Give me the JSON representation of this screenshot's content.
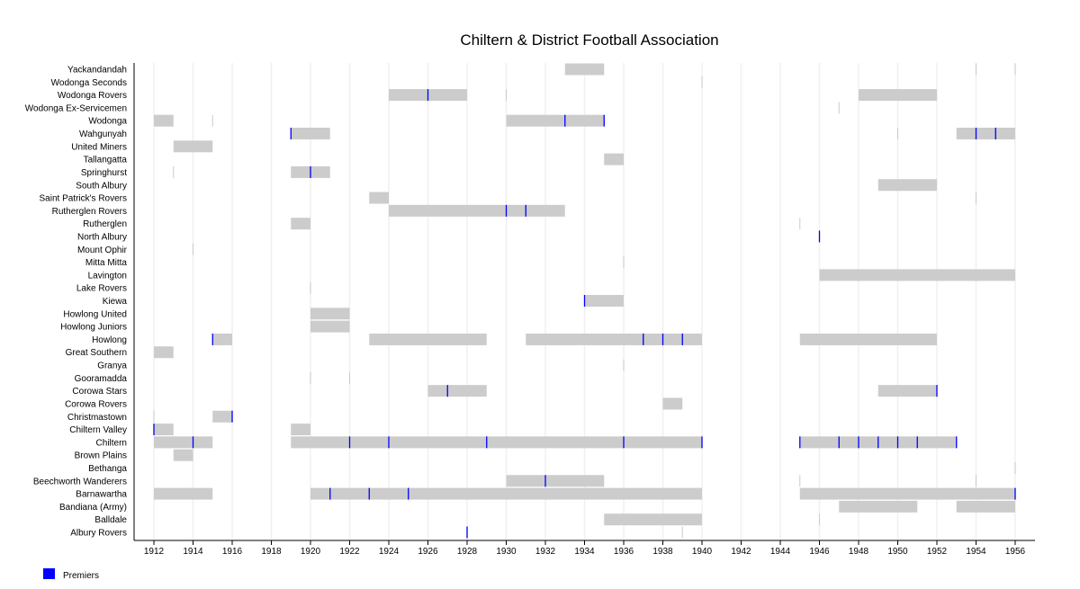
{
  "chart_data": {
    "type": "timeline",
    "title": "Chiltern & District Football Association",
    "xlim": [
      1911,
      1957
    ],
    "x_ticks": [
      1912,
      1914,
      1916,
      1918,
      1920,
      1922,
      1924,
      1926,
      1928,
      1930,
      1932,
      1934,
      1936,
      1938,
      1940,
      1942,
      1944,
      1946,
      1948,
      1950,
      1952,
      1954,
      1956
    ],
    "grid": true,
    "legend": {
      "position": "bottom-left",
      "label": "Premiers",
      "color": "#0000ff"
    },
    "colors": {
      "bar": "#cccccc",
      "premier": "#0000ff"
    },
    "teams": [
      {
        "name": "Yackandandah",
        "spans": [
          [
            1933,
            1935
          ],
          [
            1954,
            1954
          ],
          [
            1956,
            1956
          ]
        ],
        "premiers": []
      },
      {
        "name": "Wodonga Seconds",
        "spans": [
          [
            1940,
            1940
          ]
        ],
        "premiers": []
      },
      {
        "name": "Wodonga Rovers",
        "spans": [
          [
            1924,
            1928
          ],
          [
            1930,
            1930
          ],
          [
            1948,
            1952
          ]
        ],
        "premiers": [
          1926
        ]
      },
      {
        "name": "Wodonga Ex-Servicemen",
        "spans": [
          [
            1947,
            1947
          ]
        ],
        "premiers": []
      },
      {
        "name": "Wodonga",
        "spans": [
          [
            1912,
            1913
          ],
          [
            1915,
            1915
          ],
          [
            1930,
            1935
          ]
        ],
        "premiers": [
          1933,
          1935
        ]
      },
      {
        "name": "Wahgunyah",
        "spans": [
          [
            1919,
            1921
          ],
          [
            1950,
            1950
          ],
          [
            1953,
            1956
          ]
        ],
        "premiers": [
          1919,
          1954,
          1955
        ]
      },
      {
        "name": "United Miners",
        "spans": [
          [
            1913,
            1915
          ]
        ],
        "premiers": []
      },
      {
        "name": "Tallangatta",
        "spans": [
          [
            1935,
            1936
          ]
        ],
        "premiers": []
      },
      {
        "name": "Springhurst",
        "spans": [
          [
            1913,
            1913
          ],
          [
            1919,
            1921
          ]
        ],
        "premiers": [
          1920
        ]
      },
      {
        "name": "South Albury",
        "spans": [
          [
            1949,
            1952
          ]
        ],
        "premiers": []
      },
      {
        "name": "Saint Patrick's Rovers",
        "spans": [
          [
            1923,
            1924
          ],
          [
            1954,
            1954
          ]
        ],
        "premiers": []
      },
      {
        "name": "Rutherglen Rovers",
        "spans": [
          [
            1924,
            1933
          ]
        ],
        "premiers": [
          1930,
          1931
        ]
      },
      {
        "name": "Rutherglen",
        "spans": [
          [
            1919,
            1920
          ],
          [
            1945,
            1945
          ]
        ],
        "premiers": []
      },
      {
        "name": "North Albury",
        "spans": [],
        "premiers": [
          1946
        ]
      },
      {
        "name": "Mount Ophir",
        "spans": [
          [
            1914,
            1914
          ]
        ],
        "premiers": []
      },
      {
        "name": "Mitta Mitta",
        "spans": [
          [
            1936,
            1936
          ]
        ],
        "premiers": []
      },
      {
        "name": "Lavington",
        "spans": [
          [
            1946,
            1956
          ]
        ],
        "premiers": []
      },
      {
        "name": "Lake Rovers",
        "spans": [
          [
            1920,
            1920
          ]
        ],
        "premiers": []
      },
      {
        "name": "Kiewa",
        "spans": [
          [
            1934,
            1936
          ]
        ],
        "premiers": [
          1934
        ]
      },
      {
        "name": "Howlong United",
        "spans": [
          [
            1920,
            1922
          ]
        ],
        "premiers": []
      },
      {
        "name": "Howlong Juniors",
        "spans": [
          [
            1920,
            1922
          ]
        ],
        "premiers": []
      },
      {
        "name": "Howlong",
        "spans": [
          [
            1915,
            1916
          ],
          [
            1923,
            1929
          ],
          [
            1931,
            1940
          ],
          [
            1945,
            1952
          ]
        ],
        "premiers": [
          1915,
          1937,
          1938,
          1939
        ]
      },
      {
        "name": "Great Southern",
        "spans": [
          [
            1912,
            1913
          ]
        ],
        "premiers": []
      },
      {
        "name": "Granya",
        "spans": [
          [
            1936,
            1936
          ]
        ],
        "premiers": []
      },
      {
        "name": "Gooramadda",
        "spans": [
          [
            1920,
            1920
          ],
          [
            1922,
            1922
          ]
        ],
        "premiers": []
      },
      {
        "name": "Corowa Stars",
        "spans": [
          [
            1926,
            1929
          ],
          [
            1949,
            1952
          ]
        ],
        "premiers": [
          1927,
          1952
        ]
      },
      {
        "name": "Corowa Rovers",
        "spans": [
          [
            1938,
            1939
          ]
        ],
        "premiers": []
      },
      {
        "name": "Christmastown",
        "spans": [
          [
            1912,
            1912
          ],
          [
            1915,
            1916
          ]
        ],
        "premiers": [
          1916
        ]
      },
      {
        "name": "Chiltern Valley",
        "spans": [
          [
            1912,
            1913
          ],
          [
            1919,
            1920
          ]
        ],
        "premiers": [
          1912
        ]
      },
      {
        "name": "Chiltern",
        "spans": [
          [
            1912,
            1915
          ],
          [
            1919,
            1940
          ],
          [
            1945,
            1953
          ]
        ],
        "premiers": [
          1914,
          1922,
          1924,
          1929,
          1936,
          1940,
          1945,
          1947,
          1948,
          1949,
          1950,
          1951,
          1953
        ]
      },
      {
        "name": "Brown Plains",
        "spans": [
          [
            1913,
            1914
          ]
        ],
        "premiers": []
      },
      {
        "name": "Bethanga",
        "spans": [
          [
            1956,
            1956
          ]
        ],
        "premiers": []
      },
      {
        "name": "Beechworth Wanderers",
        "spans": [
          [
            1930,
            1935
          ],
          [
            1945,
            1945
          ],
          [
            1954,
            1954
          ]
        ],
        "premiers": [
          1932
        ]
      },
      {
        "name": "Barnawartha",
        "spans": [
          [
            1912,
            1915
          ],
          [
            1920,
            1940
          ],
          [
            1945,
            1956
          ]
        ],
        "premiers": [
          1921,
          1923,
          1925,
          1956
        ]
      },
      {
        "name": "Bandiana (Army)",
        "spans": [
          [
            1947,
            1951
          ],
          [
            1953,
            1956
          ]
        ],
        "premiers": []
      },
      {
        "name": "Balldale",
        "spans": [
          [
            1935,
            1940
          ],
          [
            1946,
            1946
          ]
        ],
        "premiers": []
      },
      {
        "name": "Albury Rovers",
        "spans": [
          [
            1939,
            1939
          ]
        ],
        "premiers": [
          1928
        ]
      }
    ]
  }
}
